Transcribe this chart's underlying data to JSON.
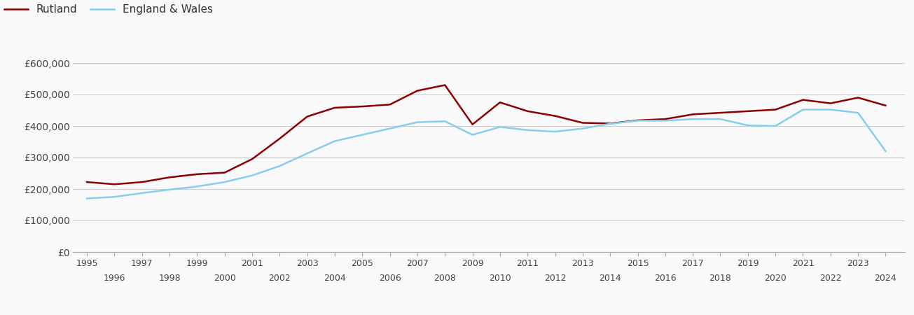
{
  "rutland_years": [
    1995,
    1996,
    1997,
    1998,
    1999,
    2000,
    2001,
    2002,
    2003,
    2004,
    2005,
    2006,
    2007,
    2008,
    2009,
    2010,
    2011,
    2012,
    2013,
    2014,
    2015,
    2016,
    2017,
    2018,
    2019,
    2020,
    2021,
    2022,
    2023,
    2024
  ],
  "rutland_values": [
    222000,
    215000,
    222000,
    237000,
    247000,
    252000,
    295000,
    360000,
    430000,
    458000,
    462000,
    468000,
    512000,
    530000,
    405000,
    475000,
    447000,
    432000,
    410000,
    408000,
    418000,
    422000,
    437000,
    442000,
    447000,
    452000,
    483000,
    472000,
    490000,
    465000
  ],
  "ew_years": [
    1995,
    1996,
    1997,
    1998,
    1999,
    2000,
    2001,
    2002,
    2003,
    2004,
    2005,
    2006,
    2007,
    2008,
    2009,
    2010,
    2011,
    2012,
    2013,
    2014,
    2015,
    2016,
    2017,
    2018,
    2019,
    2020,
    2021,
    2022,
    2023,
    2024
  ],
  "ew_values": [
    170000,
    175000,
    187000,
    198000,
    208000,
    222000,
    243000,
    273000,
    313000,
    352000,
    372000,
    392000,
    412000,
    415000,
    372000,
    397000,
    387000,
    382000,
    392000,
    407000,
    417000,
    417000,
    422000,
    422000,
    402000,
    400000,
    452000,
    452000,
    442000,
    320000
  ],
  "rutland_color": "#8B0000",
  "ew_color": "#87CEEB",
  "background_color": "#f9f9f9",
  "ylim": [
    0,
    650000
  ],
  "yticks": [
    0,
    100000,
    200000,
    300000,
    400000,
    500000,
    600000
  ],
  "ytick_labels": [
    "£0",
    "£100,000",
    "£200,000",
    "£300,000",
    "£400,000",
    "£500,000",
    "£600,000"
  ],
  "legend_labels": [
    "Rutland",
    "England & Wales"
  ],
  "line_width": 1.8,
  "grid_color": "#cccccc",
  "tick_label_color": "#444444",
  "all_years": [
    1995,
    1996,
    1997,
    1998,
    1999,
    2000,
    2001,
    2002,
    2003,
    2004,
    2005,
    2006,
    2007,
    2008,
    2009,
    2010,
    2011,
    2012,
    2013,
    2014,
    2015,
    2016,
    2017,
    2018,
    2019,
    2020,
    2021,
    2022,
    2023,
    2024
  ],
  "xlim": [
    1994.5,
    2024.7
  ],
  "figsize": [
    13.05,
    4.5
  ],
  "dpi": 100
}
